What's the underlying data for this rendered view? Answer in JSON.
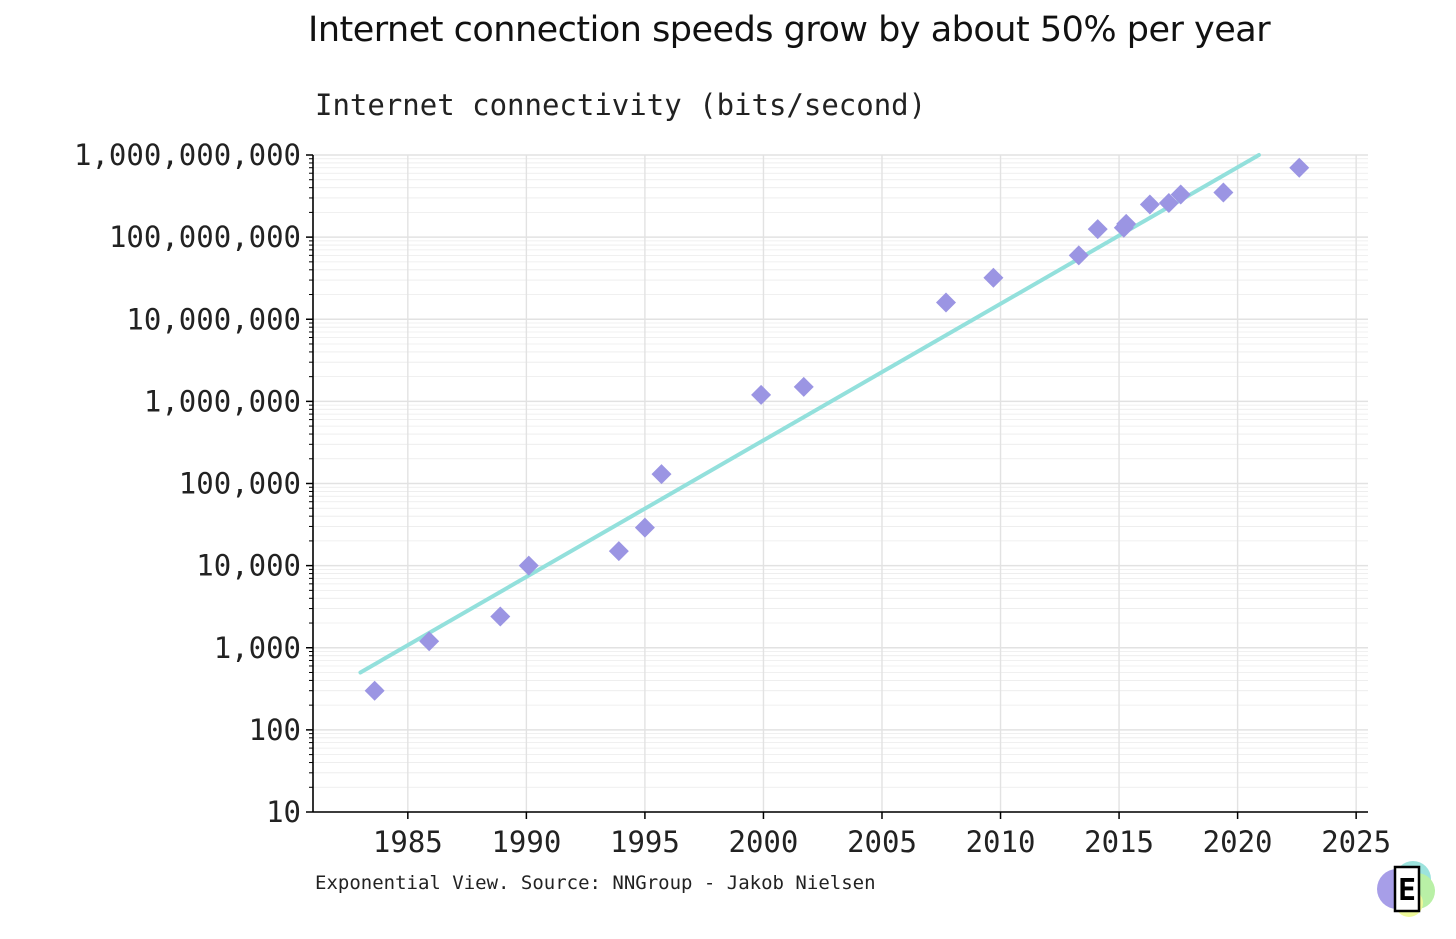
{
  "title": "Internet connection speeds grow by about 50% per year",
  "subtitle": "Internet connectivity (bits/second)",
  "footer": "Exponential View. Source: NNGroup - Jakob Nielsen",
  "colors": {
    "points": "#9b95e3",
    "trend": "#93e0dc",
    "grid": "#e2e2e2",
    "axis": "#000000",
    "logo_purple": "#a79ee8",
    "logo_teal": "#9ce3dd",
    "logo_green": "#b9f0a6",
    "logo_yellow": "#eef99a"
  },
  "logo": {
    "glyph": "E",
    "icon": "exponential-view-logo"
  },
  "chart_data": {
    "type": "scatter",
    "title": "Internet connection speeds grow by about 50% per year",
    "ylabel": "Internet connectivity (bits/second)",
    "xlabel": "",
    "xlim": [
      1981,
      2025.5
    ],
    "ylim": [
      10,
      1000000000
    ],
    "yscale": "log",
    "grid": true,
    "x_ticks": [
      1985,
      1990,
      1995,
      2000,
      2005,
      2010,
      2015,
      2020,
      2025
    ],
    "x_tick_labels": [
      "1985",
      "1990",
      "1995",
      "2000",
      "2005",
      "2010",
      "2015",
      "2020",
      "2025"
    ],
    "y_ticks": [
      10,
      100,
      1000,
      10000,
      100000,
      1000000,
      10000000,
      100000000,
      1000000000
    ],
    "y_tick_labels": [
      "10",
      "100",
      "1,000",
      "10,000",
      "100,000",
      "1,000,000",
      "10,000,000",
      "100,000,000",
      "1,000,000,000"
    ],
    "series": [
      {
        "marker": "diamond",
        "x": [
          1983.6,
          1985.9,
          1988.9,
          1990.1,
          1993.9,
          1995.0,
          1995.7,
          1999.9,
          2001.7,
          2007.7,
          2009.7,
          2013.3,
          2014.1,
          2015.2,
          2015.3,
          2016.3,
          2017.1,
          2017.6,
          2019.4,
          2022.6
        ],
        "y": [
          300,
          1200,
          2400,
          10000,
          15000,
          29000,
          130000,
          1200000,
          1500000,
          16000000,
          32000000,
          60000000,
          125000000,
          130000000,
          145000000,
          250000000,
          260000000,
          330000000,
          350000000,
          700000000
        ]
      }
    ],
    "trendline": {
      "x": [
        1983,
        2020.9
      ],
      "y": [
        500,
        1000000000
      ]
    }
  }
}
